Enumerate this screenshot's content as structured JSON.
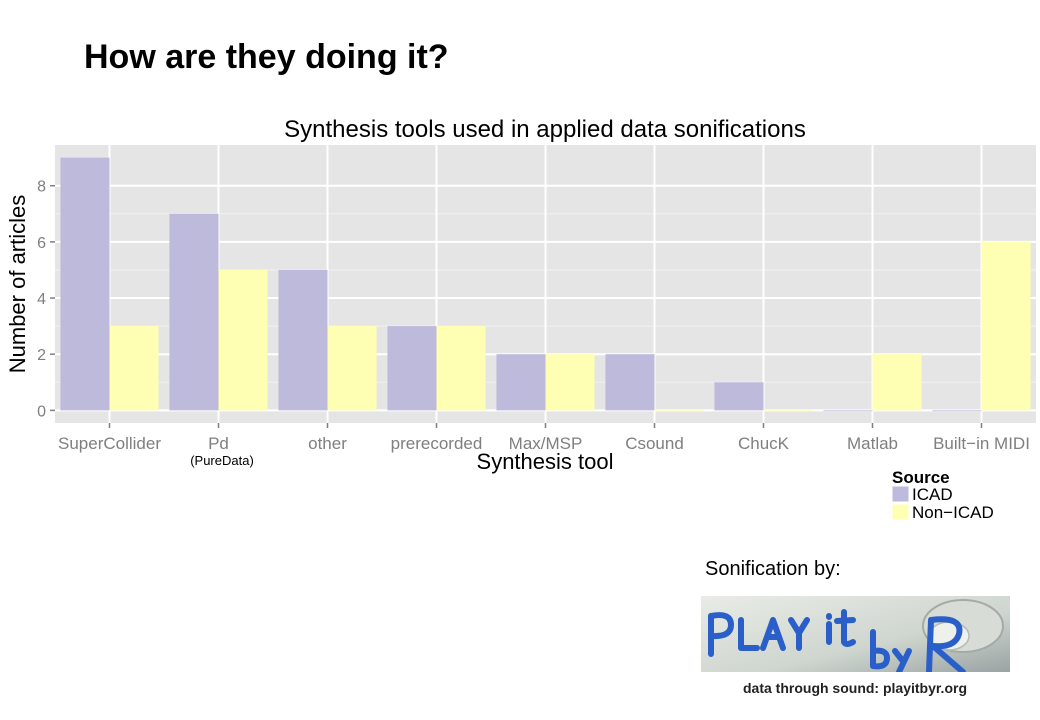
{
  "slide": {
    "title": "How are they doing it?"
  },
  "colors": {
    "icad": "#bebadb",
    "non_icad": "#ffffb3",
    "panel": "#e5e5e5",
    "grid_major": "#ffffff",
    "grid_minor": "#f2f2f2",
    "tick_text": "#7f7f7f"
  },
  "chart_data": {
    "type": "bar",
    "title": "Synthesis tools used in applied data sonifications",
    "xlabel": "Synthesis tool",
    "ylabel": "Number of articles",
    "categories": [
      "SuperCollider",
      "Pd",
      "other",
      "prerecorded",
      "Max/MSP",
      "Csound",
      "ChucK",
      "Matlab",
      "Built−in MIDI"
    ],
    "category_note": {
      "category": "Pd",
      "text": "(PureData)"
    },
    "series": [
      {
        "name": "ICAD",
        "values": [
          9,
          7,
          5,
          3,
          2,
          2,
          1,
          0,
          0
        ]
      },
      {
        "name": "Non−ICAD",
        "values": [
          3,
          5,
          3,
          3,
          2,
          0,
          0,
          2,
          6
        ]
      }
    ],
    "y_ticks": [
      0,
      2,
      4,
      6,
      8
    ],
    "ylim": [
      -0.45,
      9.45
    ],
    "grid": true,
    "legend": {
      "title": "Source",
      "placement": "bottom-right"
    }
  },
  "credit": {
    "label": "Sonification by:",
    "logo_text": "PLAY it by R",
    "logo_caption": "data through sound: playitbyr.org"
  }
}
